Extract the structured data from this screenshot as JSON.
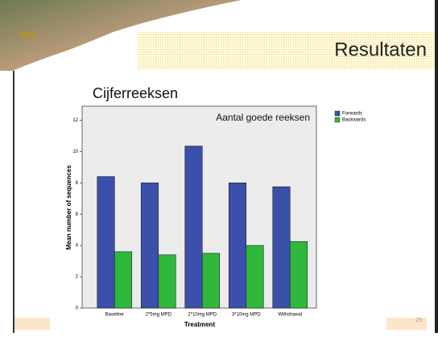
{
  "slide": {
    "logo": "GGZ",
    "title": "Resultaten",
    "subtitle": "Cijferreeksen",
    "page_number": "29"
  },
  "chart_data": {
    "type": "bar",
    "annotation": "Aantal goede reeksen",
    "x_label": "Treatment",
    "y_label": "Mean number of sequences",
    "categories": [
      "Baseline",
      "2*5mg MPD",
      "2*10mg MPD",
      "3*10mg MPD",
      "Withdrawal"
    ],
    "series": [
      {
        "name": "Forwards",
        "color": "#3a50aa",
        "values": [
          8.4,
          8.0,
          10.35,
          8.0,
          7.75
        ]
      },
      {
        "name": "Backwards",
        "color": "#2fb83c",
        "values": [
          3.6,
          3.4,
          3.5,
          4.0,
          4.25
        ]
      }
    ],
    "ylim": [
      0,
      12.9
    ],
    "yticks": [
      0,
      2,
      4,
      6,
      8,
      10,
      12
    ],
    "legend": "right"
  }
}
